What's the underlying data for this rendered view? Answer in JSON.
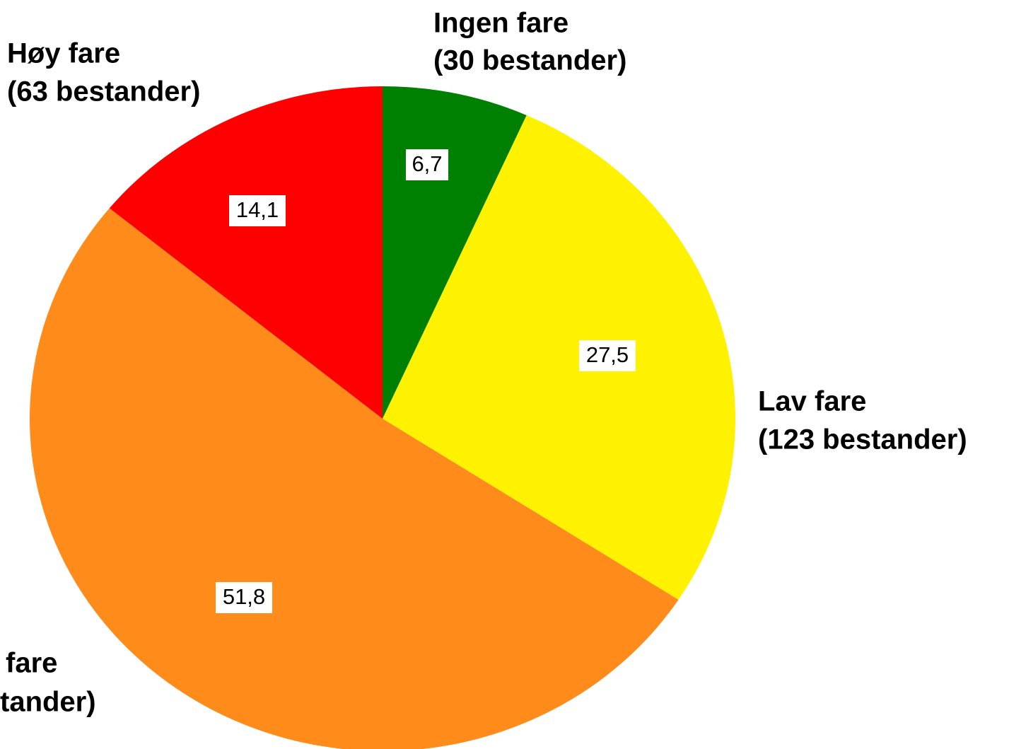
{
  "chart_data": {
    "type": "pie",
    "categories": [
      [
        "Ingen fare",
        "(30 bestander)"
      ],
      [
        "Lav fare",
        "(123 bestander)"
      ],
      [
        "fare",
        "tander)"
      ],
      [
        "Høy fare",
        "(63 bestander)"
      ]
    ],
    "values": [
      6.7,
      27.5,
      51.8,
      14.1
    ],
    "value_labels": [
      "6,7",
      "27,5",
      "51,8",
      "14,1"
    ],
    "colors": [
      "#008000",
      "#fff200",
      "#ff8c1a",
      "#ff0000"
    ]
  }
}
